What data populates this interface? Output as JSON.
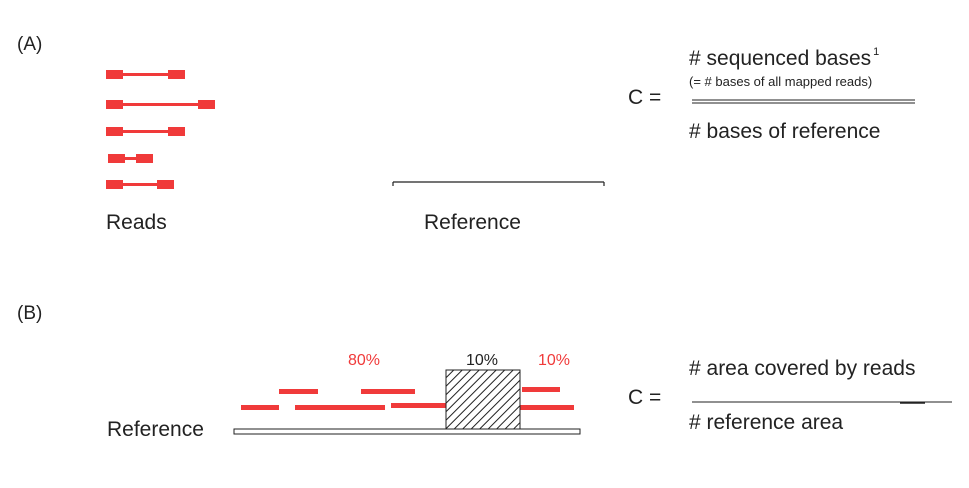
{
  "panel_a": {
    "label": "(A)",
    "reads_label": "Reads",
    "reference_label": "Reference",
    "formula": {
      "lhs": "C =",
      "numerator": "# sequenced bases",
      "superscript": "1",
      "note": "(= # bases of all mapped reads)",
      "denominator": "# bases of reference"
    }
  },
  "panel_b": {
    "label": "(B)",
    "reference_label": "Reference",
    "percent_left": "80%",
    "percent_middle": "10%",
    "percent_right": "10%",
    "formula": {
      "lhs": "C =",
      "numerator": "# area covered by reads",
      "denominator": "# reference area"
    }
  },
  "colors": {
    "read": "#f03a3a",
    "text": "#222222",
    "percent_red": "#f03a3a",
    "percent_dark": "#222222"
  }
}
